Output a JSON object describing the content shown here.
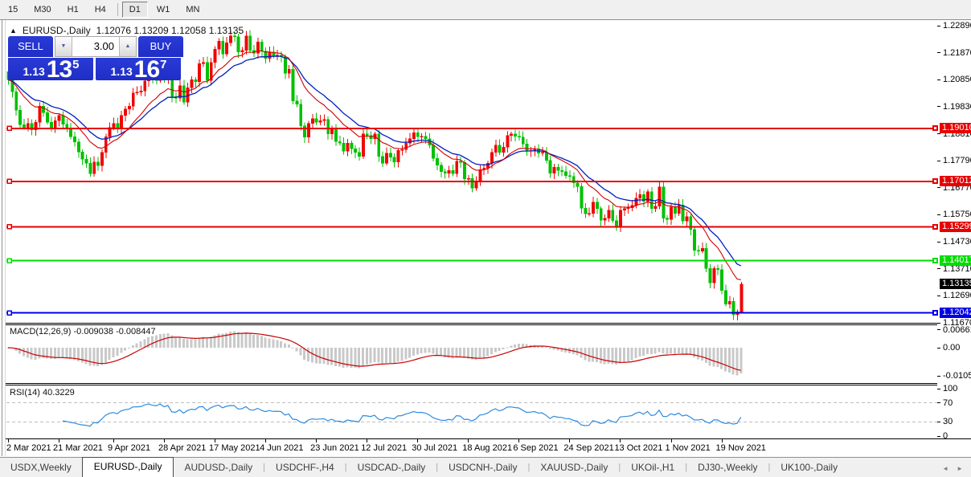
{
  "toolbar": {
    "items": [
      {
        "label": "15",
        "active": false
      },
      {
        "label": "M30",
        "active": false
      },
      {
        "label": "H1",
        "active": false
      },
      {
        "label": "H4",
        "active": false
      },
      {
        "sep": true
      },
      {
        "label": "D1",
        "active": true
      },
      {
        "label": "W1",
        "active": false
      },
      {
        "label": "MN",
        "active": false
      }
    ]
  },
  "title": {
    "collapse_icon": "▲",
    "symbol": "EURUSD-,Daily",
    "ohlc": "1.12076 1.13209 1.12058 1.13135"
  },
  "trade_panel": {
    "sell_label": "SELL",
    "buy_label": "BUY",
    "volume": "3.00",
    "down_icon": "▼",
    "up_icon": "▲",
    "sell_price": {
      "prefix": "1.13",
      "big": "13",
      "sup": "5"
    },
    "buy_price": {
      "prefix": "1.13",
      "big": "16",
      "sup": "7"
    }
  },
  "chart_data": {
    "type": "candlestick",
    "symbol": "EURUSD-,Daily",
    "price_top": 1.2289,
    "price_bottom": 1.1167,
    "first_open": 1.2115,
    "closes": [
      1.2085,
      1.204,
      1.197,
      1.1915,
      1.1905,
      1.192,
      1.1895,
      1.1925,
      1.1985,
      1.196,
      1.1925,
      1.1905,
      1.193,
      1.195,
      1.1917,
      1.19,
      1.187,
      1.185,
      1.1812,
      1.1785,
      1.177,
      1.173,
      1.1775,
      1.176,
      1.181,
      1.187,
      1.1905,
      1.192,
      1.1898,
      1.195,
      1.1975,
      1.1985,
      1.2035,
      1.2038,
      1.2042,
      1.208,
      1.2105,
      1.209,
      1.2082,
      1.2125,
      1.209,
      1.212,
      1.2022,
      1.2015,
      1.2062,
      1.2,
      1.2055,
      1.2085,
      1.2077,
      1.2145,
      1.215,
      1.2082,
      1.215,
      1.22,
      1.223,
      1.2182,
      1.2225,
      1.225,
      1.2248,
      1.219,
      1.2195,
      1.225,
      1.2195,
      1.2185,
      1.2228,
      1.2192,
      1.2166,
      1.219,
      1.2175,
      1.2178,
      1.2172,
      1.211,
      1.2125,
      1.2005,
      1.1992,
      1.191,
      1.1868,
      1.192,
      1.1938,
      1.1925,
      1.193,
      1.1935,
      1.188,
      1.19,
      1.1852,
      1.1846,
      1.1815,
      1.1845,
      1.1825,
      1.181,
      1.1795,
      1.188,
      1.1875,
      1.1862,
      1.188,
      1.1795,
      1.177,
      1.1808,
      1.1792,
      1.1775,
      1.1818,
      1.1822,
      1.1845,
      1.1862,
      1.1885,
      1.187,
      1.1872,
      1.1862,
      1.1838,
      1.1788,
      1.1762,
      1.1738,
      1.1732,
      1.1742,
      1.173,
      1.1778,
      1.1772,
      1.171,
      1.1712,
      1.1675,
      1.1698,
      1.1745,
      1.1752,
      1.177,
      1.181,
      1.1838,
      1.181,
      1.183,
      1.1875,
      1.188,
      1.1872,
      1.1868,
      1.1842,
      1.1815,
      1.1818,
      1.1825,
      1.1808,
      1.181,
      1.178,
      1.1732,
      1.1755,
      1.1742,
      1.1738,
      1.1722,
      1.1719,
      1.1695,
      1.1682,
      1.16,
      1.1578,
      1.158,
      1.1622,
      1.1598,
      1.1555,
      1.1562,
      1.1592,
      1.1553,
      1.153,
      1.1592,
      1.1598,
      1.1602,
      1.161,
      1.1638,
      1.1652,
      1.1625,
      1.1662,
      1.1598,
      1.1608,
      1.168,
      1.1562,
      1.1558,
      1.1605,
      1.158,
      1.1612,
      1.1552,
      1.1568,
      1.152,
      1.144,
      1.1438,
      1.1448,
      1.1372,
      1.1318,
      1.1372,
      1.1368,
      1.1289,
      1.1238,
      1.1248,
      1.1198,
      1.1208,
      1.13135
    ],
    "last_candle": {
      "o": 1.12076,
      "h": 1.13209,
      "l": 1.12058,
      "c": 1.13135
    },
    "y_axis_ticks": [
      "1.22890",
      "1.21870",
      "1.20850",
      "1.19830",
      "1.18810",
      "1.17790",
      "1.16770",
      "1.15750",
      "1.14730",
      "1.13710",
      "1.12690",
      "1.11670"
    ],
    "hlines": [
      {
        "price": 1.1901,
        "label": "1.19010",
        "color": "#e60000"
      },
      {
        "price": 1.17012,
        "label": "1.17012",
        "color": "#e60000"
      },
      {
        "price": 1.15299,
        "label": "1.15299",
        "color": "#e60000"
      },
      {
        "price": 1.14017,
        "label": "1.14017",
        "color": "#00dd00"
      },
      {
        "price": 1.12042,
        "label": "1.12042",
        "color": "#0000e6"
      }
    ],
    "current_price": {
      "price": 1.13135,
      "label": "1.13135",
      "bg": "#000000",
      "fg": "#ffffff"
    },
    "x_axis": [
      {
        "label": "2 Mar 2021",
        "i": 0
      },
      {
        "label": "21 Mar 2021",
        "i": 13
      },
      {
        "label": "9 Apr 2021",
        "i": 27
      },
      {
        "label": "28 Apr 2021",
        "i": 40
      },
      {
        "label": "17 May 2021",
        "i": 53
      },
      {
        "label": "4 Jun 2021",
        "i": 66
      },
      {
        "label": "23 Jun 2021",
        "i": 79
      },
      {
        "label": "12 Jul 2021",
        "i": 92
      },
      {
        "label": "30 Jul 2021",
        "i": 105
      },
      {
        "label": "18 Aug 2021",
        "i": 118
      },
      {
        "label": "6 Sep 2021",
        "i": 131
      },
      {
        "label": "24 Sep 2021",
        "i": 144
      },
      {
        "label": "13 Oct 2021",
        "i": 157
      },
      {
        "label": "1 Nov 2021",
        "i": 170
      },
      {
        "label": "19 Nov 2021",
        "i": 183
      }
    ],
    "macd": {
      "name": "MACD(12,26,9)",
      "values": "-0.009038 -0.008447",
      "axis": [
        "0.006611",
        "0.00",
        "-0.01059"
      ],
      "fast": 12,
      "slow": 26,
      "signal": 9
    },
    "rsi": {
      "name": "RSI(14)",
      "value": "40.3229",
      "period": 14,
      "axis": [
        100,
        70,
        30,
        0
      ],
      "levels": [
        70,
        30
      ]
    },
    "colors": {
      "bull": "#f00606",
      "bear": "#00c000",
      "ma_fast": "#d40000",
      "ma_slow": "#0020c0",
      "hist": "#c9c9c9",
      "signal": "#cc0000",
      "rsi_line": "#2f8be0",
      "panel_blue": "#2a3ad6",
      "panel_blue_dark": "#1f2ec6"
    }
  },
  "tabs": {
    "items": [
      {
        "label": "USDX,Weekly",
        "active": false
      },
      {
        "label": "EURUSD-,Daily",
        "active": true
      },
      {
        "label": "AUDUSD-,Daily",
        "active": false
      },
      {
        "label": "USDCHF-,H4",
        "active": false
      },
      {
        "label": "USDCAD-,Daily",
        "active": false
      },
      {
        "label": "USDCNH-,Daily",
        "active": false
      },
      {
        "label": "XAUUSD-,Daily",
        "active": false
      },
      {
        "label": "UKOil-,H1",
        "active": false
      },
      {
        "label": "DJ30-,Weekly",
        "active": false
      },
      {
        "label": "UK100-,Daily",
        "active": false
      }
    ],
    "scroll_left": "◄",
    "scroll_right": "►"
  }
}
